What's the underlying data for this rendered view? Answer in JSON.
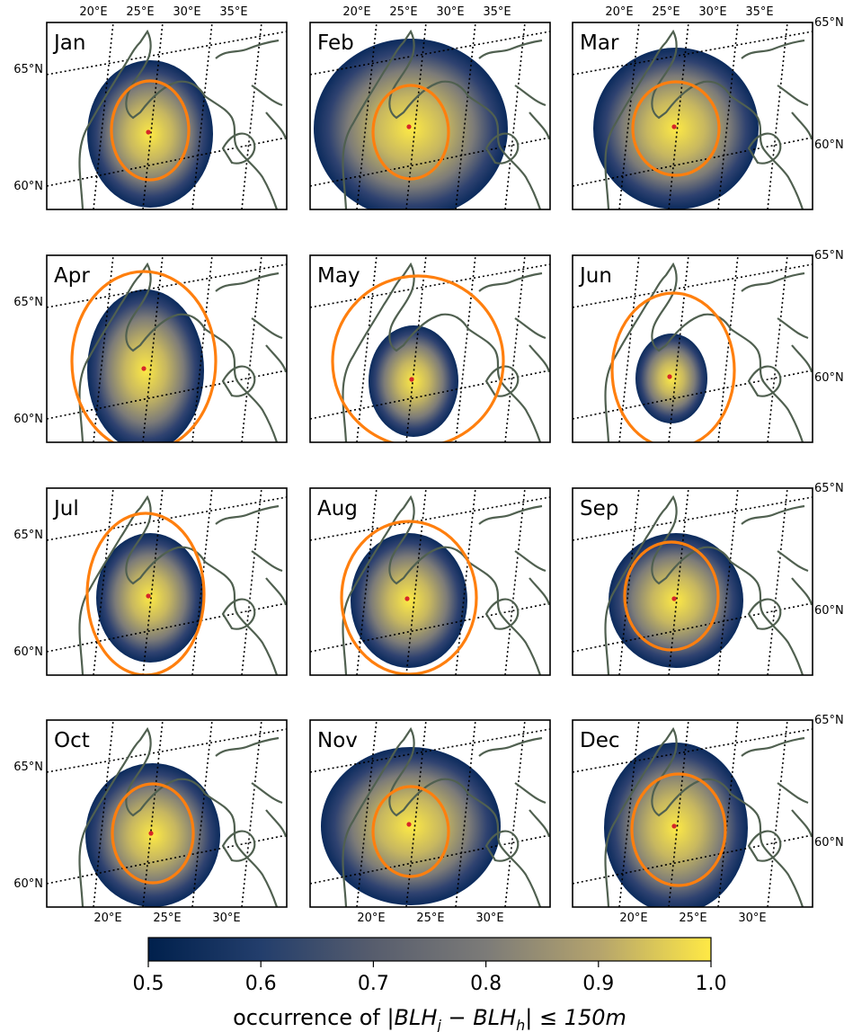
{
  "map_data": {
    "months": [
      "Jan",
      "Feb",
      "Mar",
      "Apr",
      "May",
      "Jun",
      "Jul",
      "Aug",
      "Sep",
      "Oct",
      "Nov",
      "Dec"
    ],
    "lon_ticks": [
      "20°E",
      "25°E",
      "30°E",
      "35°E"
    ],
    "lon_ticks_bottom": [
      "20°E",
      "25°E",
      "30°E"
    ],
    "lat_ticks": [
      "65°N",
      "60°N"
    ],
    "colorbar": {
      "ticks": [
        "0.5",
        "0.6",
        "0.7",
        "0.8",
        "0.9",
        "1.0"
      ],
      "range": [
        0.5,
        1.0
      ],
      "label_prefix": "occurrence of ",
      "label_math": "|BLH",
      "label_sub1": "j",
      "label_mid": " − BLH",
      "label_sub2": "h",
      "label_suffix": "| ≤ 150m"
    },
    "colors": {
      "cmap_low": "#00204c",
      "cmap_mid": "#7c7b78",
      "cmap_high": "#ffe945",
      "contour": "#ff7f0e",
      "coastline": "#506050",
      "center_dot": "#d62728"
    }
  }
}
